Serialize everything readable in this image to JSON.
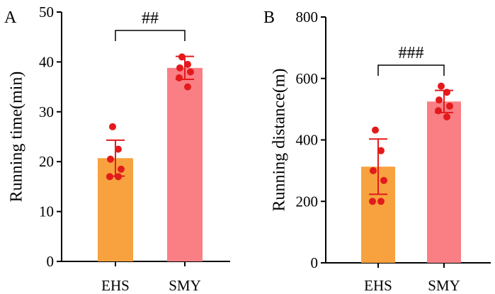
{
  "chart_data": [
    {
      "panel_label": "A",
      "type": "bar",
      "categories": [
        "EHS",
        "SMY"
      ],
      "values": [
        20.7,
        38.8
      ],
      "errors": [
        3.6,
        2.3
      ],
      "points": [
        [
          27.0,
          22.5,
          20.5,
          18.5,
          17.0,
          17.0
        ],
        [
          41.0,
          39.5,
          38.8,
          38.0,
          36.8,
          35.0
        ]
      ],
      "ylabel": "Running time(min)",
      "ylim": [
        0,
        50
      ],
      "yticks": [
        "0",
        "10",
        "20",
        "30",
        "40",
        "50"
      ],
      "significance": "##",
      "colors": {
        "EHS": "#F7A23E",
        "SMY": "#F97F84",
        "points": "#E31A1C",
        "error": "#E31A1C"
      }
    },
    {
      "panel_label": "B",
      "type": "bar",
      "categories": [
        "EHS",
        "SMY"
      ],
      "values": [
        313,
        525
      ],
      "errors": [
        90,
        36
      ],
      "points": [
        [
          432,
          365,
          300,
          268,
          200,
          200
        ],
        [
          575,
          555,
          530,
          510,
          495,
          475
        ]
      ],
      "ylabel": "Running distance(m)",
      "ylim": [
        0,
        800
      ],
      "yticks": [
        "0",
        "200",
        "400",
        "600",
        "800"
      ],
      "significance": "###",
      "colors": {
        "EHS": "#F7A23E",
        "SMY": "#F97F84",
        "points": "#E31A1C",
        "error": "#E31A1C"
      }
    }
  ]
}
